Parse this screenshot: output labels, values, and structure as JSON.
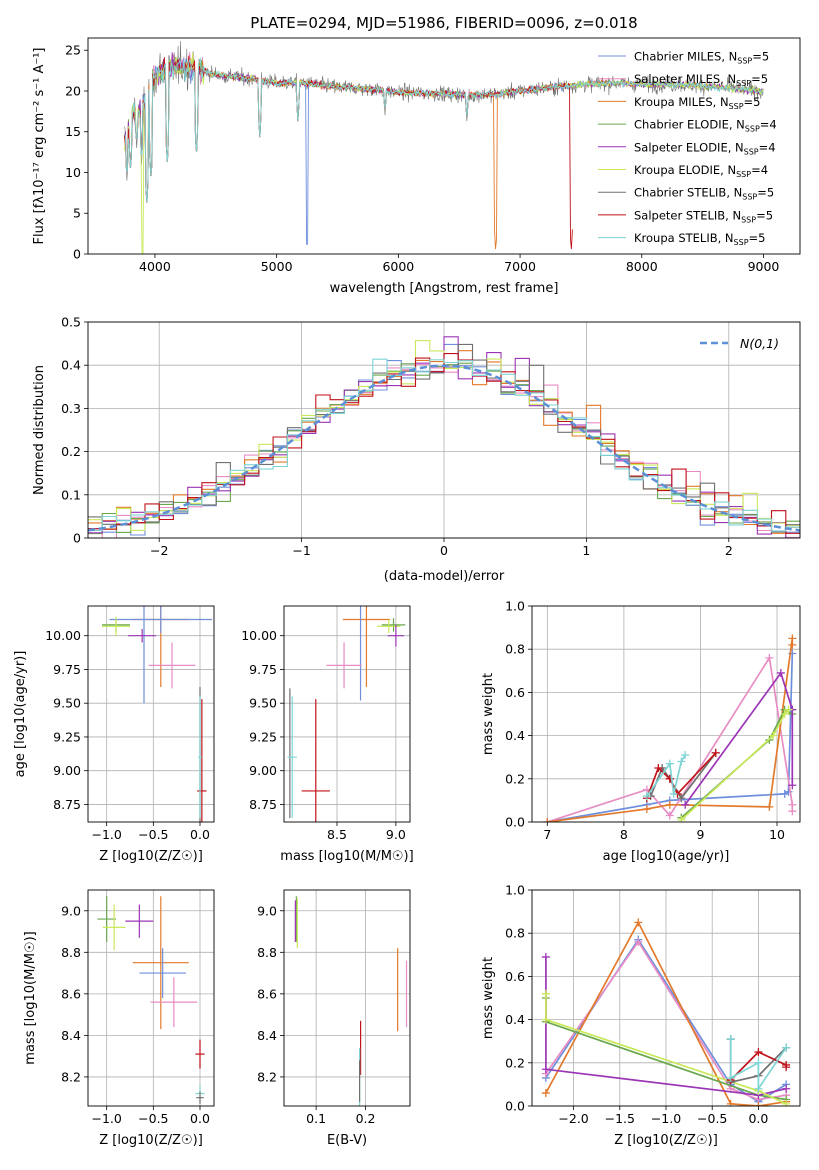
{
  "figure_title": "PLATE=0294, MJD=51986, FIBERID=0096, z=0.018",
  "colors": {
    "cb_miles": "#6f8fdc",
    "sp_miles": "#e88cc4",
    "kr_miles": "#e3792a",
    "cb_elodie": "#6aa84f",
    "sp_elodie": "#9b35b5",
    "kr_elodie": "#c9e85a",
    "cb_stelib": "#707070",
    "sp_stelib": "#c0121a",
    "kr_stelib": "#7fd5d5",
    "normal": "#5b8fd6"
  },
  "chart_data": [
    {
      "id": "spectrum",
      "type": "line",
      "title": "PLATE=0294, MJD=51986, FIBERID=0096, z=0.018",
      "xlabel": "wavelength [Angstrom, rest frame]",
      "ylabel": "Flux [fλ10⁻¹⁷ erg cm⁻² s⁻¹ A⁻¹]",
      "xlim": [
        3450,
        9300
      ],
      "ylim": [
        0,
        26.5
      ],
      "xticks": [
        4000,
        5000,
        6000,
        7000,
        8000,
        9000
      ],
      "yticks": [
        0,
        5,
        10,
        15,
        20,
        25
      ],
      "grid": false,
      "legend_position": "top-right",
      "legend": [
        {
          "key": "cb_miles",
          "label": "Chabrier MILES, N",
          "sub": "SSP",
          "tail": "=5"
        },
        {
          "key": "sp_miles",
          "label": "Salpeter MILES, N",
          "sub": "SSP",
          "tail": "=5"
        },
        {
          "key": "kr_miles",
          "label": "Kroupa MILES, N",
          "sub": "SSP",
          "tail": "=5"
        },
        {
          "key": "cb_elodie",
          "label": "Chabrier ELODIE, N",
          "sub": "SSP",
          "tail": "=4"
        },
        {
          "key": "sp_elodie",
          "label": "Salpeter ELODIE, N",
          "sub": "SSP",
          "tail": "=4"
        },
        {
          "key": "kr_elodie",
          "label": "Kroupa ELODIE, N",
          "sub": "SSP",
          "tail": "=4"
        },
        {
          "key": "cb_stelib",
          "label": "Chabrier STELIB, N",
          "sub": "SSP",
          "tail": "=5"
        },
        {
          "key": "sp_stelib",
          "label": "Salpeter STELIB, N",
          "sub": "SSP",
          "tail": "=5"
        },
        {
          "key": "kr_stelib",
          "label": "Kroupa STELIB, N",
          "sub": "SSP",
          "tail": "=5"
        }
      ],
      "continuum": [
        [
          3750,
          14
        ],
        [
          3800,
          17
        ],
        [
          3900,
          18
        ],
        [
          4000,
          22
        ],
        [
          4100,
          23
        ],
        [
          4300,
          23
        ],
        [
          4500,
          22
        ],
        [
          4800,
          21.5
        ],
        [
          5000,
          21
        ],
        [
          5200,
          21
        ],
        [
          5500,
          20.5
        ],
        [
          5800,
          20.2
        ],
        [
          6000,
          19.8
        ],
        [
          6300,
          19.7
        ],
        [
          6600,
          19.5
        ],
        [
          6800,
          19.6
        ],
        [
          7000,
          20
        ],
        [
          7300,
          20.5
        ],
        [
          7500,
          20.8
        ],
        [
          7800,
          21
        ],
        [
          8000,
          20.8
        ],
        [
          8300,
          20.8
        ],
        [
          8600,
          20.5
        ],
        [
          9000,
          20
        ]
      ],
      "absorption_dips": [
        [
          3770,
          9
        ],
        [
          3800,
          10
        ],
        [
          3850,
          13
        ],
        [
          3890,
          11
        ],
        [
          3933,
          6
        ],
        [
          3968,
          9
        ],
        [
          4101,
          11
        ],
        [
          4340,
          12
        ],
        [
          4861,
          14
        ],
        [
          5175,
          16
        ],
        [
          5250,
          0
        ],
        [
          5890,
          17
        ],
        [
          6563,
          16
        ],
        [
          6800,
          0
        ],
        [
          7420,
          0
        ]
      ]
    },
    {
      "id": "residuals",
      "type": "step",
      "xlabel": "(data-model)/error",
      "ylabel": "Normed distribution",
      "xlim": [
        -2.5,
        2.5
      ],
      "ylim": [
        0,
        0.5
      ],
      "xticks": [
        -2,
        -1,
        0,
        1,
        2
      ],
      "yticks": [
        0.0,
        0.1,
        0.2,
        0.3,
        0.4,
        0.5
      ],
      "grid": true,
      "legend_position": "top-right",
      "legend_label": "N(0,1)",
      "bin_width": 0.1
    },
    {
      "id": "age_vs_Z",
      "type": "errorbar",
      "xlabel": "Z [log10(Z/Z☉)]",
      "ylabel": "age [log10(age/yr)]",
      "xlim": [
        -1.2,
        0.15
      ],
      "ylim": [
        8.62,
        10.22
      ],
      "xticks": [
        -1.0,
        -0.5,
        0.0
      ],
      "xticklabels": [
        "−1.0",
        "−0.5",
        "0.0"
      ],
      "yticks": [
        8.75,
        9.0,
        9.25,
        9.5,
        9.75,
        10.0
      ],
      "yticklabels": [
        "8.75",
        "9.00",
        "9.25",
        "9.50",
        "9.75",
        "10.00"
      ],
      "grid": true,
      "points": [
        {
          "key": "kr_miles",
          "x": -0.42,
          "xerr": 0.3,
          "y": 10.12,
          "yerr": 0.5
        },
        {
          "key": "cb_miles",
          "x": -0.42,
          "xerr": 0.55,
          "y": 10.12,
          "yerr": 0.1
        },
        {
          "key": "cb_miles",
          "x": -0.6,
          "xerr": 0.0,
          "y": 9.9,
          "yerr": 0.4
        },
        {
          "key": "sp_miles",
          "x": -0.3,
          "xerr": 0.25,
          "y": 9.78,
          "yerr": 0.17
        },
        {
          "key": "cb_elodie",
          "x": -0.9,
          "xerr": 0.15,
          "y": 10.08,
          "yerr": 0.05
        },
        {
          "key": "kr_elodie",
          "x": -0.9,
          "xerr": 0.15,
          "y": 10.07,
          "yerr": 0.07
        },
        {
          "key": "sp_elodie",
          "x": -0.62,
          "xerr": 0.15,
          "y": 10.0,
          "yerr": 0.05
        },
        {
          "key": "cb_stelib",
          "x": 0.0,
          "xerr": 0.0,
          "y": 9.1,
          "yerr": 0.52
        },
        {
          "key": "sp_stelib",
          "x": 0.02,
          "xerr": 0.05,
          "y": 8.85,
          "yerr": 0.68
        },
        {
          "key": "kr_stelib",
          "x": 0.0,
          "xerr": 0.02,
          "y": 9.1,
          "yerr": 0.45
        }
      ]
    },
    {
      "id": "age_vs_mass",
      "type": "errorbar",
      "xlabel": "mass [log10(M/M☉)]",
      "ylabel": "",
      "xlim": [
        8.05,
        9.12
      ],
      "ylim": [
        8.62,
        10.22
      ],
      "xticks": [
        8.5,
        9.0
      ],
      "xticklabels": [
        "8.5",
        "9.0"
      ],
      "yticks": [
        8.75,
        9.0,
        9.25,
        9.5,
        9.75,
        10.0
      ],
      "yticklabels": [
        "8.75",
        "9.00",
        "9.25",
        "9.50",
        "9.75",
        "10.00"
      ],
      "grid": true,
      "points": [
        {
          "key": "kr_miles",
          "x": 8.75,
          "xerr": 0.2,
          "y": 10.12,
          "yerr": 0.5
        },
        {
          "key": "cb_miles",
          "x": 8.7,
          "xerr": 0.0,
          "y": 10.12,
          "yerr": 0.6
        },
        {
          "key": "sp_miles",
          "x": 8.56,
          "xerr": 0.15,
          "y": 9.78,
          "yerr": 0.17
        },
        {
          "key": "cb_elodie",
          "x": 8.98,
          "xerr": 0.1,
          "y": 10.08,
          "yerr": 0.05
        },
        {
          "key": "kr_elodie",
          "x": 8.94,
          "xerr": 0.1,
          "y": 10.07,
          "yerr": 0.05
        },
        {
          "key": "sp_elodie",
          "x": 9.0,
          "xerr": 0.07,
          "y": 10.0,
          "yerr": 0.08
        },
        {
          "key": "cb_stelib",
          "x": 8.1,
          "xerr": 0.0,
          "y": 9.13,
          "yerr": 0.48
        },
        {
          "key": "sp_stelib",
          "x": 8.32,
          "xerr": 0.12,
          "y": 8.85,
          "yerr": 0.68
        },
        {
          "key": "kr_stelib",
          "x": 8.12,
          "xerr": 0.04,
          "y": 9.1,
          "yerr": 0.45
        }
      ]
    },
    {
      "id": "mass_vs_Z",
      "type": "errorbar",
      "xlabel": "Z [log10(Z/Z☉)]",
      "ylabel": "mass [log10(M/M☉)]",
      "xlim": [
        -1.2,
        0.15
      ],
      "ylim": [
        8.06,
        9.1
      ],
      "xticks": [
        -1.0,
        -0.5,
        0.0
      ],
      "xticklabels": [
        "−1.0",
        "−0.5",
        "0.0"
      ],
      "yticks": [
        8.2,
        8.4,
        8.6,
        8.8,
        9.0
      ],
      "yticklabels": [
        "8.2",
        "8.4",
        "8.6",
        "8.8",
        "9.0"
      ],
      "grid": true,
      "points": [
        {
          "key": "cb_elodie",
          "x": -1.0,
          "xerr": 0.1,
          "y": 8.96,
          "yerr": 0.11
        },
        {
          "key": "kr_elodie",
          "x": -0.92,
          "xerr": 0.12,
          "y": 8.92,
          "yerr": 0.11
        },
        {
          "key": "sp_elodie",
          "x": -0.65,
          "xerr": 0.15,
          "y": 8.95,
          "yerr": 0.08
        },
        {
          "key": "kr_miles",
          "x": -0.42,
          "xerr": 0.3,
          "y": 8.75,
          "yerr": 0.32
        },
        {
          "key": "cb_miles",
          "x": -0.4,
          "xerr": 0.25,
          "y": 8.7,
          "yerr": 0.12
        },
        {
          "key": "sp_miles",
          "x": -0.28,
          "xerr": 0.25,
          "y": 8.56,
          "yerr": 0.12
        },
        {
          "key": "sp_stelib",
          "x": 0.0,
          "xerr": 0.05,
          "y": 8.31,
          "yerr": 0.07
        },
        {
          "key": "kr_stelib",
          "x": 0.0,
          "xerr": 0.05,
          "y": 8.12,
          "yerr": 0.04
        },
        {
          "key": "cb_stelib",
          "x": 0.0,
          "xerr": 0.04,
          "y": 8.1,
          "yerr": 0.03
        }
      ]
    },
    {
      "id": "mass_vs_ebv",
      "type": "errorbar",
      "xlabel": "E(B-V)",
      "ylabel": "",
      "xlim": [
        0.035,
        0.29
      ],
      "ylim": [
        8.06,
        9.1
      ],
      "xticks": [
        0.1,
        0.2
      ],
      "xticklabels": [
        "0.1",
        "0.2"
      ],
      "yticks": [
        8.2,
        8.4,
        8.6,
        8.8,
        9.0
      ],
      "yticklabels": [
        "8.2",
        "8.4",
        "8.6",
        "8.8",
        "9.0"
      ],
      "grid": true,
      "points": [
        {
          "key": "cb_elodie",
          "x": 0.06,
          "xerr": 0.0,
          "y": 8.96,
          "yerr": 0.11
        },
        {
          "key": "kr_elodie",
          "x": 0.062,
          "xerr": 0.0,
          "y": 8.94,
          "yerr": 0.12
        },
        {
          "key": "sp_elodie",
          "x": 0.058,
          "xerr": 0.0,
          "y": 8.95,
          "yerr": 0.1
        },
        {
          "key": "kr_miles",
          "x": 0.265,
          "xerr": 0.0,
          "y": 8.62,
          "yerr": 0.2
        },
        {
          "key": "sp_miles",
          "x": 0.283,
          "xerr": 0.0,
          "y": 8.6,
          "yerr": 0.16
        },
        {
          "key": "sp_stelib",
          "x": 0.19,
          "xerr": 0.0,
          "y": 8.34,
          "yerr": 0.13
        },
        {
          "key": "kr_stelib",
          "x": 0.188,
          "xerr": 0.0,
          "y": 8.2,
          "yerr": 0.14
        },
        {
          "key": "cb_stelib",
          "x": 0.188,
          "xerr": 0.0,
          "y": 8.18,
          "yerr": 0.1
        }
      ]
    },
    {
      "id": "weight_vs_age",
      "type": "line",
      "xlabel": "age [log10(age/yr)]",
      "ylabel": "mass weight",
      "xlim": [
        6.8,
        10.3
      ],
      "ylim": [
        0,
        1.0
      ],
      "xticks": [
        7,
        8,
        9,
        10
      ],
      "xticklabels": [
        "7",
        "8",
        "9",
        "10"
      ],
      "yticks": [
        0.0,
        0.2,
        0.4,
        0.6,
        0.8,
        1.0
      ],
      "yticklabels": [
        "0.0",
        "0.2",
        "0.4",
        "0.6",
        "0.8",
        "1.0"
      ],
      "grid": true,
      "series": [
        {
          "key": "cb_miles",
          "x": [
            7.0,
            8.3,
            8.6,
            10.1,
            10.15,
            10.2
          ],
          "y": [
            0.0,
            0.08,
            0.1,
            0.13,
            0.14,
            0.78
          ]
        },
        {
          "key": "sp_miles",
          "x": [
            7.0,
            8.3,
            8.6,
            9.9,
            10.2,
            10.2
          ],
          "y": [
            0.0,
            0.15,
            0.03,
            0.76,
            0.08,
            0.05
          ]
        },
        {
          "key": "kr_miles",
          "x": [
            7.0,
            8.3,
            8.6,
            9.9,
            10.2,
            10.2
          ],
          "y": [
            0.0,
            0.06,
            0.08,
            0.07,
            0.85,
            0.82
          ]
        },
        {
          "key": "cb_elodie",
          "x": [
            8.75,
            9.9,
            10.1,
            10.2
          ],
          "y": [
            0.02,
            0.38,
            0.52,
            0.5
          ]
        },
        {
          "key": "sp_elodie",
          "x": [
            8.8,
            10.05,
            10.2,
            10.2
          ],
          "y": [
            0.08,
            0.69,
            0.52,
            0.17
          ]
        },
        {
          "key": "kr_elodie",
          "x": [
            8.75,
            9.95,
            10.1,
            10.15
          ],
          "y": [
            0.01,
            0.4,
            0.5,
            0.52
          ]
        },
        {
          "key": "cb_stelib",
          "x": [
            8.35,
            8.5,
            8.6,
            8.75,
            9.2
          ],
          "y": [
            0.12,
            0.25,
            0.2,
            0.11,
            0.32
          ]
        },
        {
          "key": "sp_stelib",
          "x": [
            8.3,
            8.45,
            8.6,
            8.7,
            9.2
          ],
          "y": [
            0.11,
            0.25,
            0.2,
            0.13,
            0.32
          ]
        },
        {
          "key": "kr_stelib",
          "x": [
            8.3,
            8.6,
            8.65,
            8.75,
            8.8
          ],
          "y": [
            0.12,
            0.27,
            0.13,
            0.28,
            0.31
          ]
        }
      ]
    },
    {
      "id": "weight_vs_Z",
      "type": "line",
      "xlabel": "Z [log10(Z/Z☉)]",
      "ylabel": "mass weight",
      "xlim": [
        -2.45,
        0.45
      ],
      "ylim": [
        0,
        1.0
      ],
      "xticks": [
        -2.0,
        -1.5,
        -1.0,
        -0.5,
        0.0
      ],
      "xticklabels": [
        "−2.0",
        "−1.5",
        "−1.0",
        "−0.5",
        "0.0"
      ],
      "yticks": [
        0.0,
        0.2,
        0.4,
        0.6,
        0.8,
        1.0
      ],
      "yticklabels": [
        "0.0",
        "0.2",
        "0.4",
        "0.6",
        "0.8",
        "1.0"
      ],
      "grid": true,
      "series": [
        {
          "key": "cb_miles",
          "x": [
            -2.3,
            -1.3,
            -0.3,
            0.0,
            0.3
          ],
          "y": [
            0.13,
            0.77,
            0.1,
            0.02,
            0.1
          ]
        },
        {
          "key": "sp_miles",
          "x": [
            -2.3,
            -1.3,
            -0.3,
            0.0,
            0.3
          ],
          "y": [
            0.15,
            0.76,
            0.08,
            0.03,
            0.05
          ]
        },
        {
          "key": "kr_miles",
          "x": [
            -2.3,
            -1.3,
            -0.3,
            0.0,
            0.3
          ],
          "y": [
            0.06,
            0.85,
            0.01,
            0.0,
            0.02
          ]
        },
        {
          "key": "cb_elodie",
          "x": [
            -2.3,
            -2.3,
            0.0,
            0.3
          ],
          "y": [
            0.5,
            0.39,
            0.05,
            0.03
          ]
        },
        {
          "key": "sp_elodie",
          "x": [
            -2.3,
            -2.3,
            0.0,
            0.3
          ],
          "y": [
            0.69,
            0.17,
            0.05,
            0.08
          ]
        },
        {
          "key": "kr_elodie",
          "x": [
            -2.3,
            -2.3,
            0.0,
            0.3
          ],
          "y": [
            0.52,
            0.4,
            0.07,
            0.01
          ]
        },
        {
          "key": "cb_stelib",
          "x": [
            -0.3,
            -0.3,
            0.0,
            0.3
          ],
          "y": [
            0.31,
            0.11,
            0.14,
            0.27
          ]
        },
        {
          "key": "sp_stelib",
          "x": [
            -0.3,
            0.0,
            0.3,
            0.3
          ],
          "y": [
            0.12,
            0.25,
            0.19,
            0.18
          ]
        },
        {
          "key": "kr_stelib",
          "x": [
            -0.3,
            -0.3,
            0.0,
            0.0,
            0.3
          ],
          "y": [
            0.31,
            0.13,
            0.2,
            0.08,
            0.27
          ]
        }
      ]
    }
  ]
}
